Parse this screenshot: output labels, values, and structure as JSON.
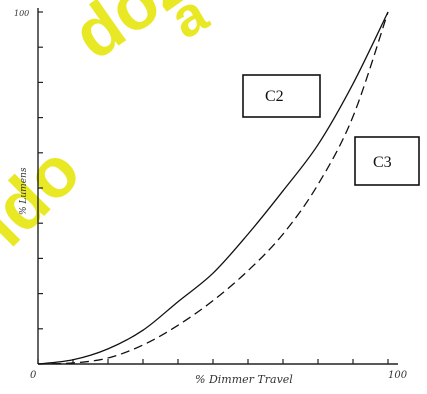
{
  "watermark": {
    "text": "Gradeup",
    "color": "#e6e600"
  },
  "chart_data": {
    "type": "line",
    "title": "",
    "xlabel": "% Dimmer Travel",
    "ylabel": "% Lumens",
    "xlim": [
      0,
      100
    ],
    "ylim": [
      0,
      100
    ],
    "x_tick_labels": {
      "start": "0",
      "end": "100"
    },
    "y_tick_labels": {
      "end": "100"
    },
    "grid": false,
    "series": [
      {
        "name": "C2",
        "style": "solid",
        "x": [
          0,
          10,
          20,
          30,
          40,
          50,
          60,
          70,
          80,
          90,
          100
        ],
        "y": [
          0,
          1.2,
          4.3,
          9.6,
          17.7,
          25.8,
          36.9,
          49.2,
          62.3,
          79.6,
          100
        ]
      },
      {
        "name": "C3",
        "style": "dashed",
        "x": [
          0,
          10,
          20,
          30,
          40,
          50,
          60,
          70,
          80,
          90,
          100
        ],
        "y": [
          0,
          0.3,
          1.7,
          5.4,
          11.0,
          18.0,
          26.5,
          36.9,
          51.0,
          70.3,
          100
        ]
      }
    ]
  }
}
